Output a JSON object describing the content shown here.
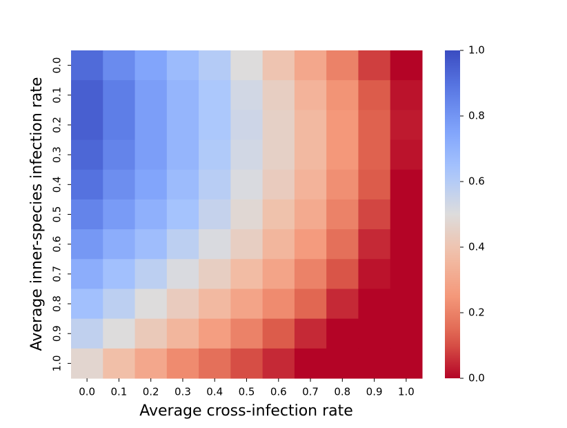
{
  "chart_data": {
    "type": "heatmap",
    "xlabel": "Average cross-infection rate",
    "ylabel": "Average inner-species infection rate",
    "x_categories": [
      "0.0",
      "0.1",
      "0.2",
      "0.3",
      "0.4",
      "0.5",
      "0.6",
      "0.7",
      "0.8",
      "0.9",
      "1.0"
    ],
    "y_categories": [
      "0.0",
      "0.1",
      "0.2",
      "0.3",
      "0.4",
      "0.5",
      "0.6",
      "0.7",
      "0.8",
      "0.9",
      "1.0"
    ],
    "values": [
      [
        0.92,
        0.83,
        0.75,
        0.67,
        0.6,
        0.5,
        0.4,
        0.3,
        0.2,
        0.08,
        0.0
      ],
      [
        0.95,
        0.87,
        0.77,
        0.69,
        0.62,
        0.53,
        0.44,
        0.34,
        0.24,
        0.12,
        0.02
      ],
      [
        0.95,
        0.87,
        0.77,
        0.69,
        0.62,
        0.54,
        0.45,
        0.36,
        0.25,
        0.13,
        0.03
      ],
      [
        0.93,
        0.85,
        0.77,
        0.69,
        0.61,
        0.53,
        0.45,
        0.36,
        0.25,
        0.13,
        0.02
      ],
      [
        0.9,
        0.82,
        0.75,
        0.67,
        0.59,
        0.51,
        0.43,
        0.34,
        0.23,
        0.12,
        0.0
      ],
      [
        0.85,
        0.78,
        0.71,
        0.64,
        0.56,
        0.48,
        0.39,
        0.31,
        0.2,
        0.09,
        0.0
      ],
      [
        0.79,
        0.72,
        0.66,
        0.58,
        0.51,
        0.44,
        0.35,
        0.26,
        0.16,
        0.05,
        0.0
      ],
      [
        0.72,
        0.65,
        0.58,
        0.51,
        0.44,
        0.37,
        0.29,
        0.2,
        0.11,
        0.02,
        0.0
      ],
      [
        0.65,
        0.58,
        0.5,
        0.43,
        0.36,
        0.29,
        0.22,
        0.14,
        0.05,
        0.0,
        0.0
      ],
      [
        0.57,
        0.5,
        0.42,
        0.35,
        0.27,
        0.2,
        0.12,
        0.05,
        0.0,
        0.0,
        0.0
      ],
      [
        0.47,
        0.38,
        0.3,
        0.22,
        0.16,
        0.1,
        0.05,
        0.0,
        0.0,
        0.0,
        0.0
      ]
    ],
    "colormap": "coolwarm_r",
    "clim": [
      0,
      1
    ],
    "cticks": [
      {
        "value": 0,
        "label": "0.0"
      },
      0.2,
      0.4,
      0.6,
      0.8,
      {
        "value": 1,
        "label": "1.0"
      }
    ]
  }
}
